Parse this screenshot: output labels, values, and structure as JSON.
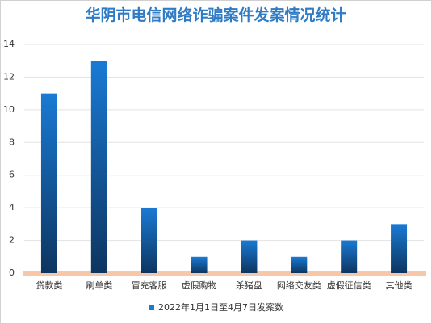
{
  "chart_data": {
    "type": "bar",
    "title": "华阴市电信网络诈骗案件发案情况统计",
    "categories": [
      "贷款类",
      "刷单类",
      "冒充客服",
      "虚假购物",
      "杀猪盘",
      "网络交友类",
      "虚假征信类",
      "其他类"
    ],
    "series": [
      {
        "name": "2022年1月1日至4月7日发案数",
        "color": "#1a7ad4",
        "values": [
          11,
          13,
          4,
          1,
          2,
          1,
          2,
          3
        ]
      }
    ],
    "ylim": [
      0,
      14
    ],
    "yticks": [
      0,
      2,
      4,
      6,
      8,
      10,
      12,
      14
    ],
    "grid": true,
    "legend": "bottom"
  }
}
